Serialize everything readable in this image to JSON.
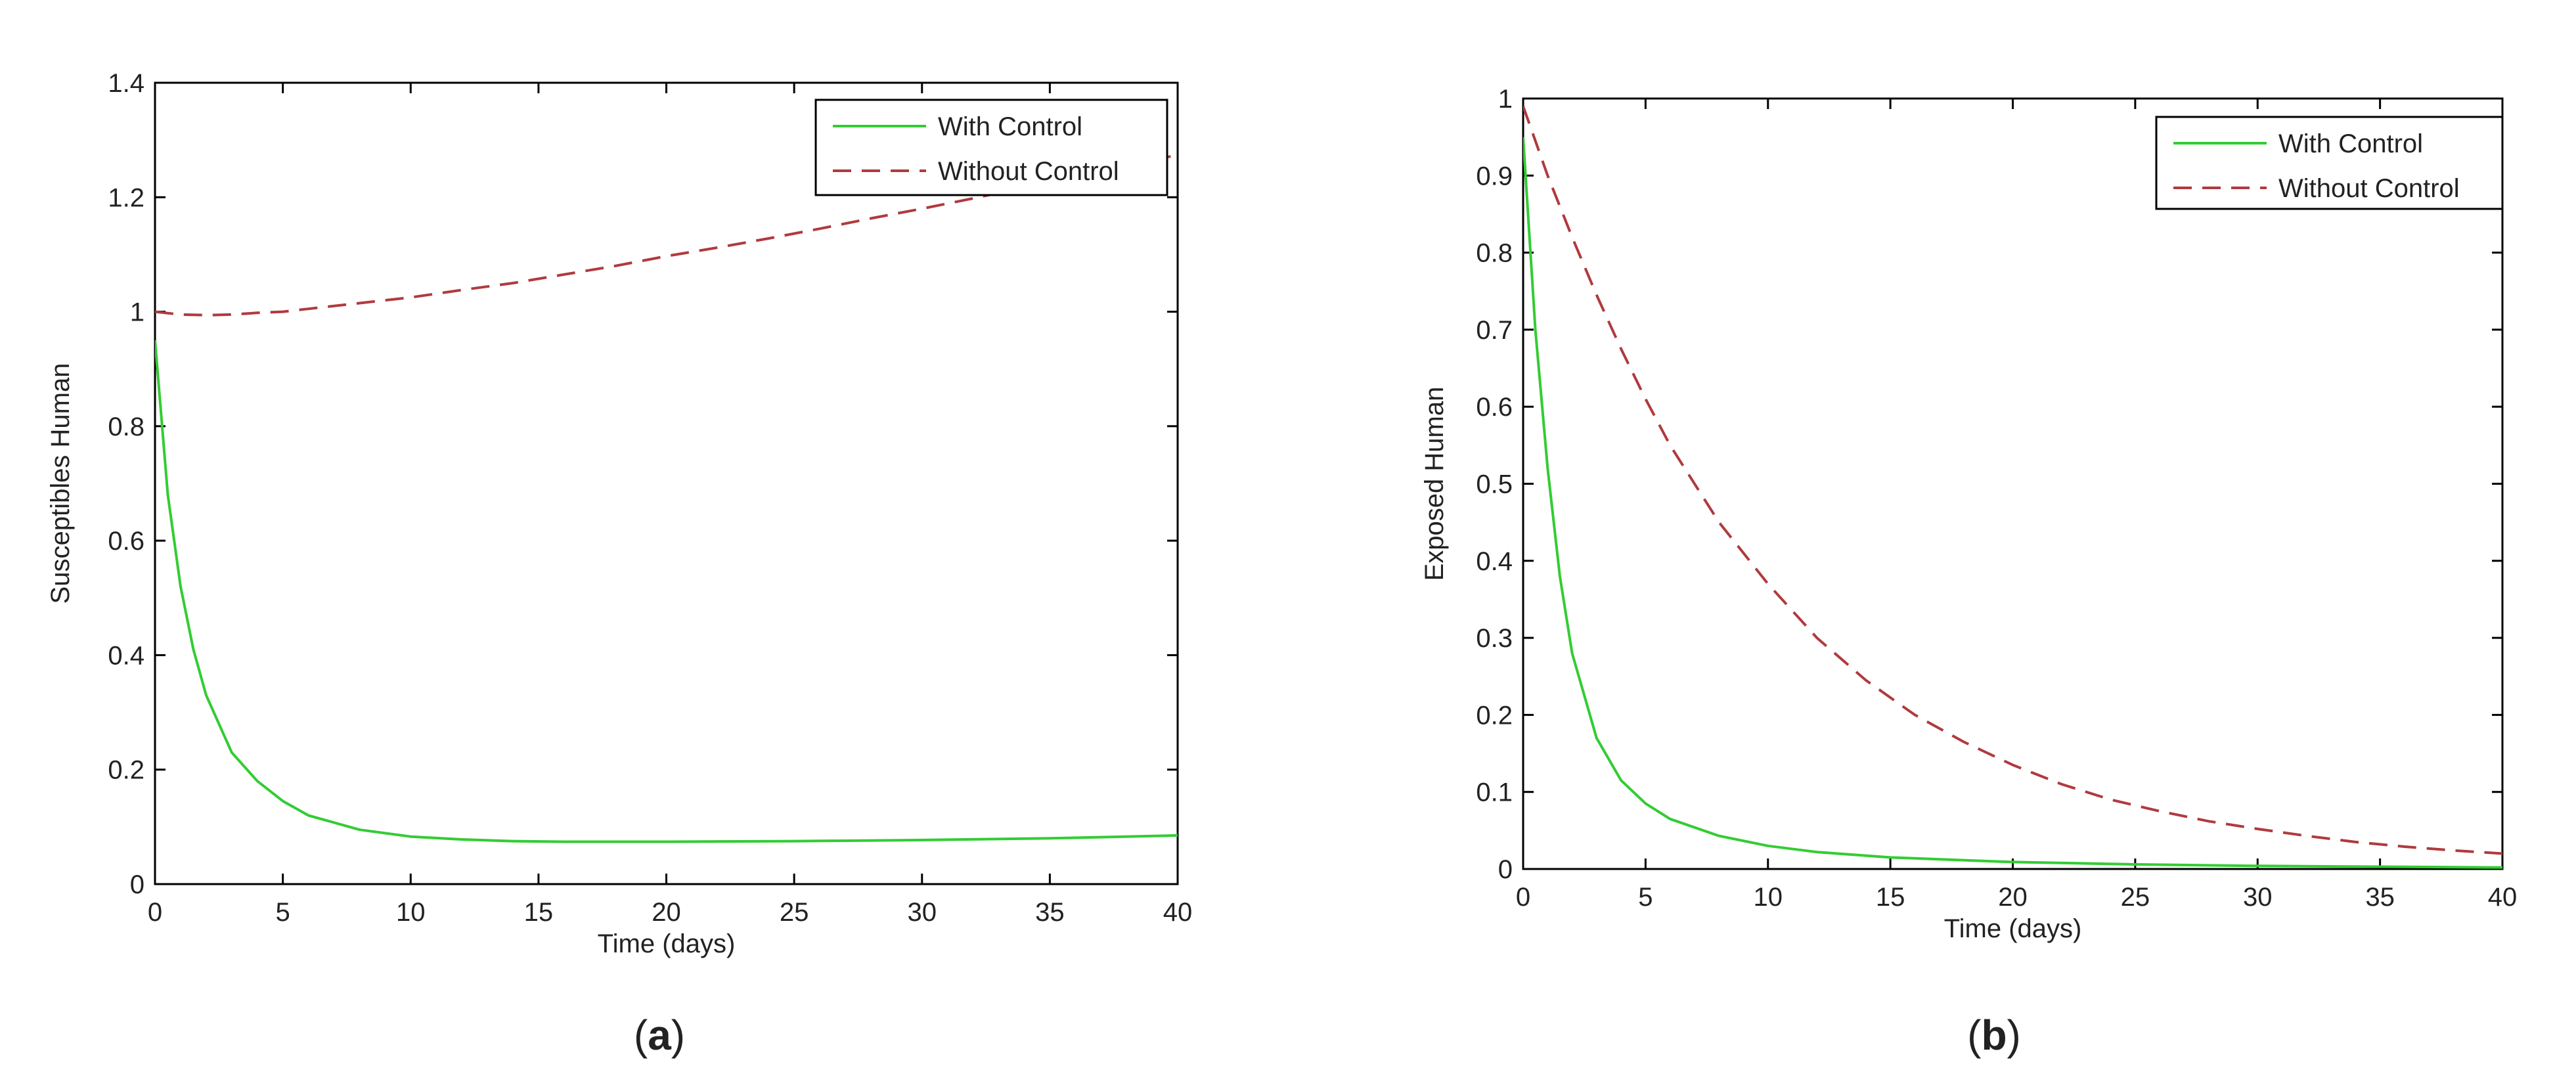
{
  "figure": {
    "colors": {
      "with_control": "#33cc33",
      "without_control": "#b03a3e",
      "axes": "#000000"
    }
  },
  "chart_data": [
    {
      "type": "line",
      "panel_label": {
        "open": "(",
        "letter": "a",
        "close": ")"
      },
      "xlabel": "Time (days)",
      "ylabel": "Susceptibles Human",
      "xlim": [
        0,
        40
      ],
      "ylim": [
        0,
        1.4
      ],
      "xticks": [
        "0",
        "5",
        "10",
        "15",
        "20",
        "25",
        "30",
        "35",
        "40"
      ],
      "yticks": [
        "0",
        "0.2",
        "0.4",
        "0.6",
        "0.8",
        "1",
        "1.2",
        "1.4"
      ],
      "grid": false,
      "legend_position": "top-right",
      "series": [
        {
          "name": "With Control",
          "style": "solid",
          "x": [
            0,
            0.5,
            1,
            1.5,
            2,
            3,
            4,
            5,
            6,
            8,
            10,
            12,
            14,
            16,
            20,
            25,
            30,
            35,
            40
          ],
          "y": [
            0.95,
            0.68,
            0.52,
            0.41,
            0.33,
            0.23,
            0.18,
            0.145,
            0.12,
            0.095,
            0.083,
            0.078,
            0.075,
            0.074,
            0.074,
            0.075,
            0.077,
            0.08,
            0.085
          ]
        },
        {
          "name": "Without Control",
          "style": "dashed",
          "x": [
            0,
            1,
            2,
            3,
            4,
            5,
            6,
            8,
            10,
            12,
            14,
            16,
            18,
            20,
            22,
            24,
            26,
            28,
            30,
            32,
            34,
            36,
            38,
            40
          ],
          "y": [
            1.0,
            0.995,
            0.994,
            0.995,
            0.998,
            1.0,
            1.005,
            1.015,
            1.025,
            1.038,
            1.05,
            1.065,
            1.08,
            1.097,
            1.112,
            1.128,
            1.145,
            1.163,
            1.18,
            1.198,
            1.217,
            1.236,
            1.255,
            1.274
          ]
        }
      ]
    },
    {
      "type": "line",
      "panel_label": {
        "open": "(",
        "letter": "b",
        "close": ")"
      },
      "xlabel": "Time (days)",
      "ylabel": "Exposed Human",
      "xlim": [
        0,
        40
      ],
      "ylim": [
        0,
        1
      ],
      "xticks": [
        "0",
        "5",
        "10",
        "15",
        "20",
        "25",
        "30",
        "35",
        "40"
      ],
      "yticks": [
        "0",
        "0.1",
        "0.2",
        "0.3",
        "0.4",
        "0.5",
        "0.6",
        "0.7",
        "0.8",
        "0.9",
        "1"
      ],
      "grid": false,
      "legend_position": "top-right",
      "series": [
        {
          "name": "With Control",
          "style": "solid",
          "x": [
            0,
            0.5,
            1,
            1.5,
            2,
            3,
            4,
            5,
            6,
            8,
            10,
            12,
            15,
            20,
            25,
            30,
            35,
            40
          ],
          "y": [
            0.95,
            0.7,
            0.52,
            0.38,
            0.28,
            0.17,
            0.115,
            0.085,
            0.065,
            0.043,
            0.03,
            0.022,
            0.015,
            0.009,
            0.006,
            0.004,
            0.003,
            0.002
          ]
        },
        {
          "name": "Without Control",
          "style": "dashed",
          "x": [
            0,
            1,
            2,
            3,
            4,
            5,
            6,
            8,
            10,
            12,
            14,
            16,
            18,
            20,
            22,
            24,
            26,
            28,
            30,
            32,
            34,
            36,
            38,
            40
          ],
          "y": [
            0.99,
            0.9,
            0.82,
            0.745,
            0.675,
            0.61,
            0.55,
            0.45,
            0.37,
            0.3,
            0.245,
            0.2,
            0.165,
            0.135,
            0.11,
            0.09,
            0.075,
            0.062,
            0.052,
            0.043,
            0.035,
            0.029,
            0.024,
            0.02
          ]
        }
      ]
    }
  ]
}
